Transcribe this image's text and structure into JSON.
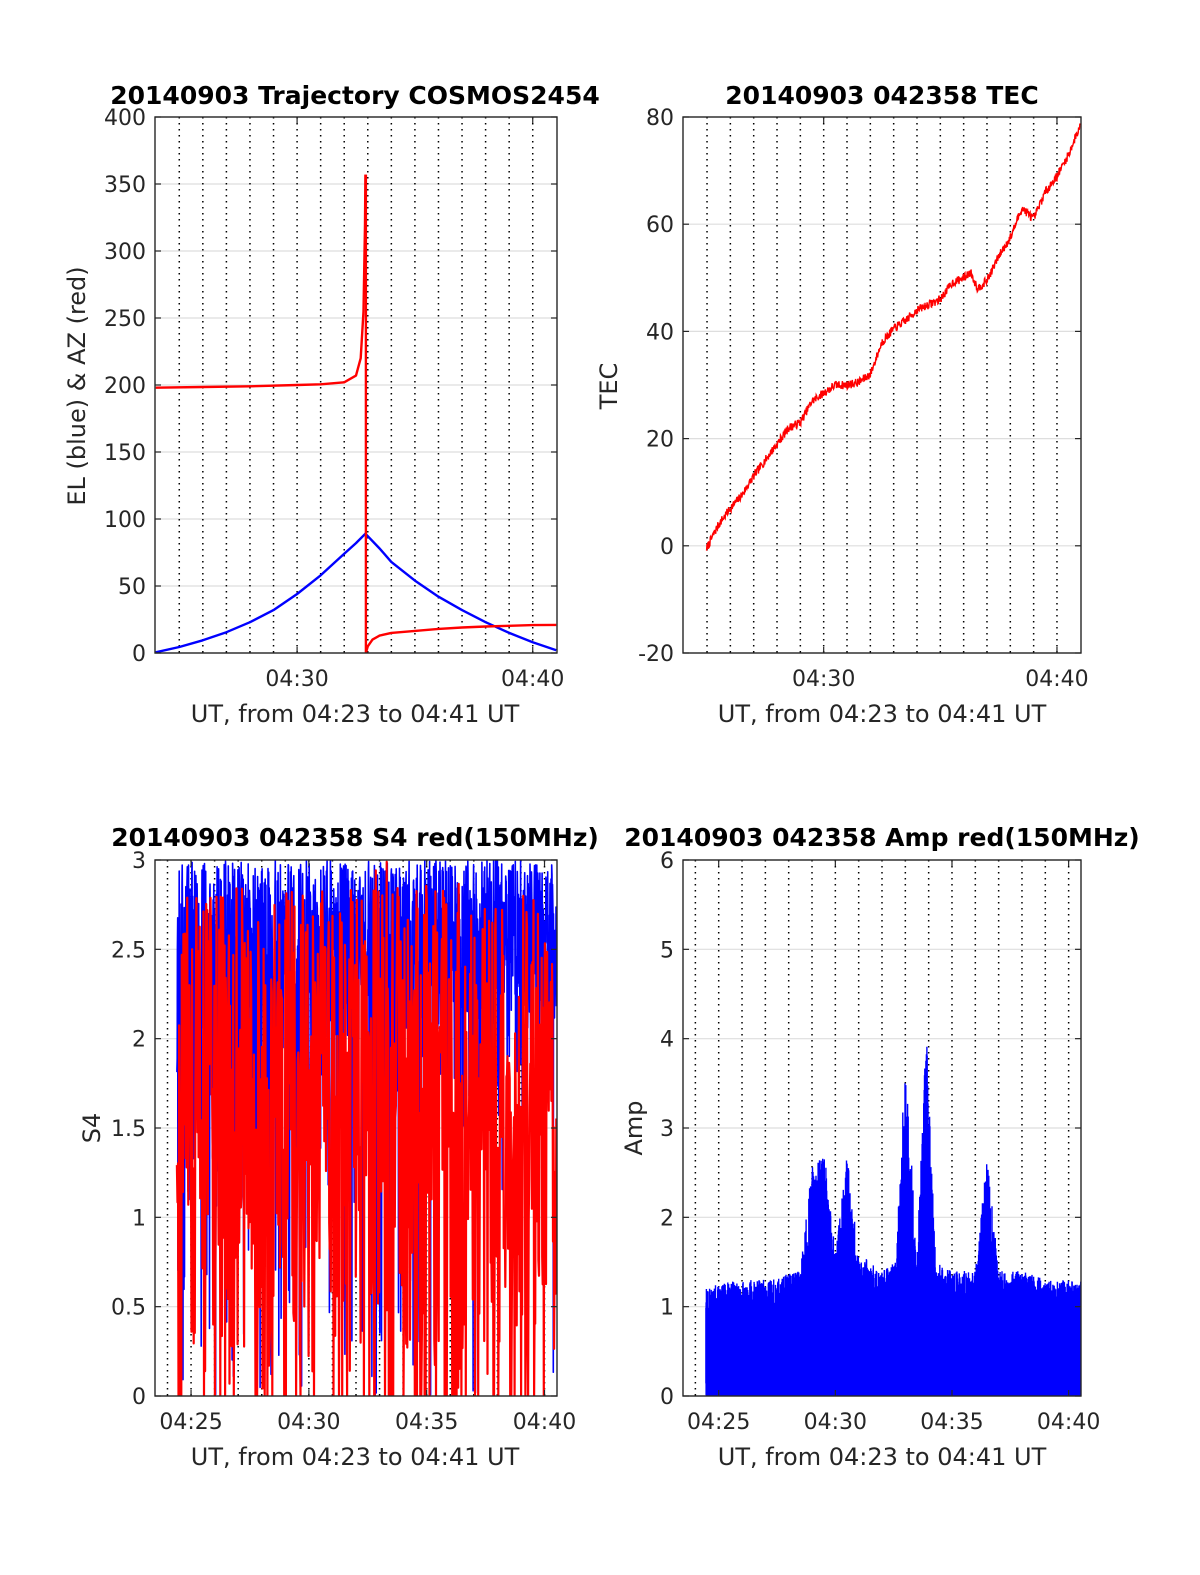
{
  "chart_data": [
    {
      "type": "line",
      "title": "20140903 Trajectory COSMOS2454",
      "xlabel": "UT, from 04:23 to 04:41 UT",
      "ylabel": "EL (blue) & AZ (red)",
      "xlim": [
        23.97,
        41.03
      ],
      "ylim": [
        0,
        400
      ],
      "xticks": [
        30,
        40
      ],
      "xtick_labels": [
        "04:30",
        "04:40"
      ],
      "yticks": [
        0,
        50,
        100,
        150,
        200,
        250,
        300,
        350,
        400
      ],
      "ytick_labels": [
        "0",
        "50",
        "100",
        "150",
        "200",
        "250",
        "300",
        "350",
        "400"
      ],
      "vgrid_minutes": [
        24,
        25,
        26,
        27,
        28,
        29,
        30,
        31,
        32,
        33,
        34,
        35,
        36,
        37,
        38,
        39,
        40,
        41
      ],
      "grid": true,
      "series": [
        {
          "color": "#0000ff",
          "x": [
            24.0,
            25.0,
            26.0,
            27.0,
            28.0,
            29.0,
            30.0,
            31.0,
            32.0,
            32.5,
            32.9,
            33.5,
            34.0,
            35.0,
            36.0,
            37.0,
            38.0,
            39.0,
            40.0,
            41.0
          ],
          "y": [
            0.5,
            4.5,
            9.5,
            15.5,
            23,
            32,
            44,
            58,
            74,
            82,
            89,
            78,
            68,
            54,
            42,
            32,
            23,
            15,
            8,
            2
          ]
        },
        {
          "color": "#ff0000",
          "x": [
            24.0,
            26.0,
            28.0,
            30.0,
            31.0,
            32.0,
            32.5,
            32.7,
            32.82,
            32.88,
            32.9
          ],
          "y": [
            198,
            198.5,
            199,
            200,
            200.5,
            202,
            207,
            220,
            255,
            320,
            357
          ]
        },
        {
          "color": "#ff0000",
          "x": [
            32.92,
            32.92,
            33.0,
            33.2,
            33.5,
            34.0,
            35.0,
            36.0,
            37.0,
            38.0,
            39.0,
            40.0,
            41.0
          ],
          "y": [
            357,
            0,
            5,
            10,
            13,
            15,
            16.5,
            18,
            19,
            19.8,
            20.3,
            20.8,
            21
          ]
        }
      ]
    },
    {
      "type": "line",
      "title": "20140903 042358 TEC",
      "xlabel": "UT, from 04:23 to 04:41 UT",
      "ylabel": "TEC",
      "xlim": [
        23.97,
        41.03
      ],
      "ylim": [
        -20,
        80
      ],
      "xticks": [
        30,
        40
      ],
      "xtick_labels": [
        "04:30",
        "04:40"
      ],
      "yticks": [
        -20,
        0,
        20,
        40,
        60,
        80
      ],
      "ytick_labels": [
        "-20",
        "0",
        "20",
        "40",
        "60",
        "80"
      ],
      "vgrid_minutes": [
        24,
        25,
        26,
        27,
        28,
        29,
        30,
        31,
        32,
        33,
        34,
        35,
        36,
        37,
        38,
        39,
        40,
        41
      ],
      "grid": true,
      "series": [
        {
          "color": "#ff0000",
          "x": [
            24.98,
            25.5,
            26.0,
            26.5,
            27.0,
            27.5,
            28.0,
            28.5,
            29.0,
            29.5,
            30.0,
            30.5,
            31.0,
            31.5,
            32.0,
            32.5,
            33.0,
            33.5,
            34.0,
            34.5,
            35.0,
            35.5,
            36.0,
            36.3,
            36.6,
            37.0,
            37.5,
            38.0,
            38.5,
            39.0,
            39.5,
            40.0,
            40.5,
            41.0
          ],
          "y": [
            -0.5,
            4,
            7,
            9.5,
            13,
            16,
            19,
            22,
            23,
            27,
            28.5,
            30,
            30,
            30.5,
            32,
            38,
            40.5,
            42,
            44,
            45,
            46,
            49,
            50,
            51,
            48,
            49.5,
            54,
            57.5,
            63,
            61,
            66,
            69,
            73,
            78.5
          ]
        }
      ]
    },
    {
      "type": "line",
      "title": "20140903 042358 S4 red(150MHz)",
      "xlabel": "UT, from 04:23 to 04:41 UT",
      "ylabel": "S4",
      "xlim": [
        23.47,
        40.53
      ],
      "ylim": [
        0,
        3
      ],
      "xticks": [
        25,
        30,
        35,
        40
      ],
      "xtick_labels": [
        "04:25",
        "04:30",
        "04:35",
        "04:40"
      ],
      "yticks": [
        0,
        0.5,
        1,
        1.5,
        2,
        2.5,
        3
      ],
      "ytick_labels": [
        "0",
        "0.5",
        "1",
        "1.5",
        "2",
        "2.5",
        "3"
      ],
      "vgrid_minutes": [
        24,
        25,
        26,
        27,
        28,
        29,
        30,
        31,
        32,
        33,
        34,
        35,
        36,
        37,
        38,
        39,
        40
      ],
      "grid": true,
      "x_start": 24.4,
      "x_end": 40.5,
      "series": [
        {
          "color": "#0000ff",
          "noise_profile": {
            "x": [
              24.4,
              26.0,
              28.0,
              30.0,
              32.0,
              33.0,
              34.0,
              36.0,
              38.0,
              40.5
            ],
            "min": [
              0,
              0.6,
              0.5,
              1.0,
              1.2,
              0.8,
              1.0,
              1.3,
              1.4,
              1.5
            ],
            "max": [
              3,
              3,
              3,
              3,
              3,
              3,
              3,
              3,
              3,
              3
            ]
          }
        },
        {
          "color": "#ff0000",
          "noise_profile": {
            "x": [
              24.4,
              26.0,
              28.0,
              30.0,
              32.0,
              34.0,
              36.0,
              38.0,
              40.5
            ],
            "min": [
              0,
              0,
              0,
              0,
              0,
              0,
              0,
              0,
              0
            ],
            "max": [
              2.8,
              2.8,
              2.9,
              2.8,
              3.0,
              3.0,
              2.9,
              2.8,
              2.8
            ]
          }
        }
      ]
    },
    {
      "type": "line",
      "title": "20140903 042358 Amp red(150MHz)",
      "xlabel": "UT, from 04:23 to 04:41 UT",
      "ylabel": "Amp",
      "xlim": [
        23.47,
        40.53
      ],
      "ylim": [
        0,
        6
      ],
      "xticks": [
        25,
        30,
        35,
        40
      ],
      "xtick_labels": [
        "04:25",
        "04:30",
        "04:35",
        "04:40"
      ],
      "yticks": [
        0,
        1,
        2,
        3,
        4,
        5,
        6
      ],
      "ytick_labels": [
        "0",
        "1",
        "2",
        "3",
        "4",
        "5",
        "6"
      ],
      "vgrid_minutes": [
        24,
        25,
        26,
        27,
        28,
        29,
        30,
        31,
        32,
        33,
        34,
        35,
        36,
        37,
        38,
        39,
        40
      ],
      "grid": true,
      "x_start": 24.45,
      "x_end": 40.53,
      "series": [
        {
          "color": "#0000ff",
          "noise_profile": {
            "x": [
              24.45,
              25.5,
              27.0,
              28.5,
              29.0,
              29.5,
              30.0,
              30.5,
              31.0,
              32.0,
              32.6,
              33.0,
              33.5,
              33.9,
              34.3,
              35.0,
              36.0,
              36.5,
              37.0,
              38.0,
              39.0,
              40.53
            ],
            "envelope": [
              1.2,
              1.3,
              1.3,
              1.4,
              2.6,
              2.8,
              1.6,
              2.7,
              1.6,
              1.4,
              1.5,
              3.8,
              1.6,
              4.1,
              1.5,
              1.4,
              1.4,
              2.7,
              1.4,
              1.4,
              1.3,
              1.3
            ]
          }
        }
      ]
    }
  ]
}
